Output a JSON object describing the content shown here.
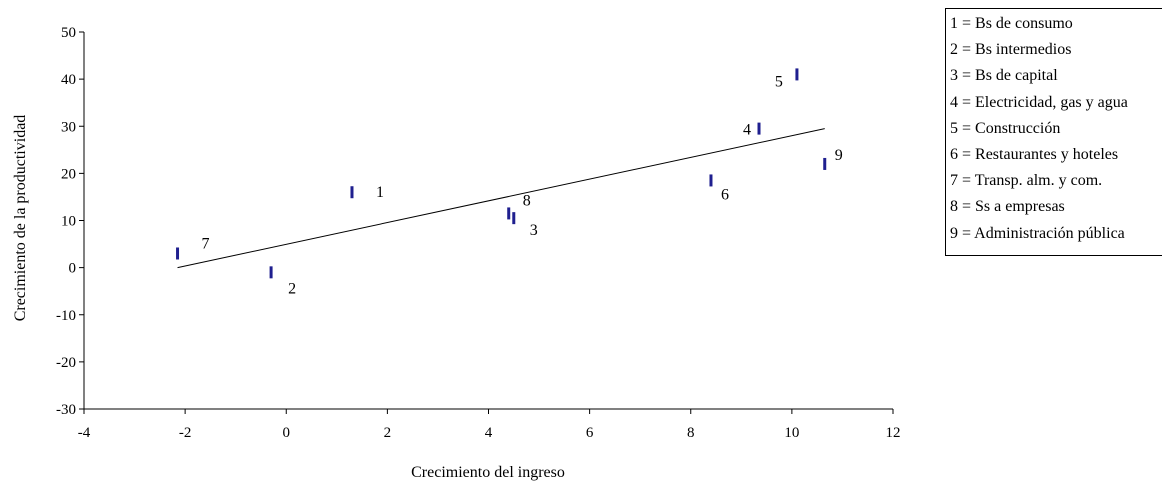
{
  "chart_data": {
    "type": "scatter",
    "xlabel": "Crecimiento del ingreso",
    "ylabel": "Crecimiento de la productividad",
    "xlim": [
      -4,
      12
    ],
    "ylim": [
      -30,
      50
    ],
    "xticks": [
      -4,
      -2,
      0,
      2,
      4,
      6,
      8,
      10,
      12
    ],
    "yticks": [
      50,
      40,
      30,
      20,
      10,
      0,
      -10,
      -20,
      -30
    ],
    "marker_color": "#1f1f8f",
    "points": [
      {
        "label": "1",
        "x": 1.3,
        "y": 16.0
      },
      {
        "label": "2",
        "x": -0.3,
        "y": -1.0
      },
      {
        "label": "3",
        "x": 4.5,
        "y": 10.5
      },
      {
        "label": "4",
        "x": 9.35,
        "y": 29.5
      },
      {
        "label": "5",
        "x": 10.1,
        "y": 41.0
      },
      {
        "label": "6",
        "x": 8.4,
        "y": 18.5
      },
      {
        "label": "7",
        "x": -2.15,
        "y": 3.0
      },
      {
        "label": "8",
        "x": 4.4,
        "y": 11.5
      },
      {
        "label": "9",
        "x": 10.65,
        "y": 22.0
      }
    ],
    "trendline": {
      "x0": -2.15,
      "y0": 0.0,
      "x1": 10.65,
      "y1": 29.5
    },
    "legend": [
      "1 = Bs de consumo",
      "2 = Bs intermedios",
      "3 = Bs de capital",
      "4 = Electricidad, gas y agua",
      "5 = Construcción",
      "6 = Restaurantes y hoteles",
      "7 = Transp. alm. y com.",
      "8 = Ss a empresas",
      "9 = Administración pública"
    ],
    "legend_position": "top-right"
  }
}
